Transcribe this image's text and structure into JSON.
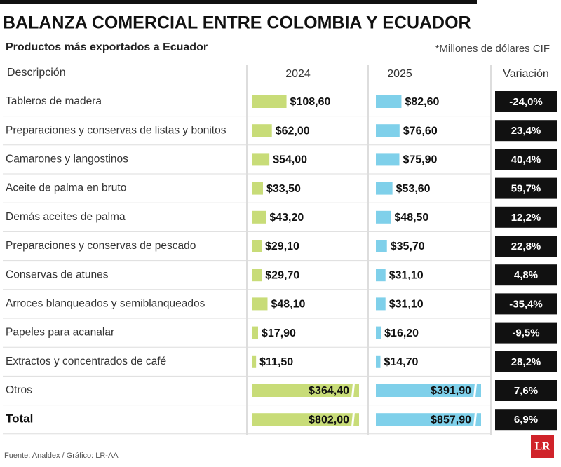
{
  "chart_data": {
    "type": "bar-table",
    "title": "BALANZA COMERCIAL ENTRE COLOMBIA Y ECUADOR",
    "subtitle": "Productos más exportados a Ecuador",
    "unit_note": "*Millones de dólares CIF",
    "description_header": "Descripción",
    "variation_header": "Variación",
    "categories": [
      "Tableros de madera",
      "Preparaciones y conservas de listas y bonitos",
      "Camarones y langostinos",
      "Aceite de palma en bruto",
      "Demás aceites de palma",
      "Preparaciones y conservas de pescado",
      "Conservas de atunes",
      "Arroces blanqueados y semiblanqueados",
      "Papeles para acanalar",
      "Extractos y concentrados de café",
      "Otros",
      "Total"
    ],
    "xlim": [
      0,
      340
    ],
    "series": [
      {
        "name": "2024",
        "color": "#c8dc78",
        "values": [
          108.6,
          62.0,
          54.0,
          33.5,
          43.2,
          29.1,
          29.7,
          48.1,
          17.9,
          11.5,
          364.4,
          802.0
        ],
        "value_labels": [
          "$108,60",
          "$62,00",
          "$54,00",
          "$33,50",
          "$43,20",
          "$29,10",
          "$29,70",
          "$48,10",
          "$17,90",
          "$11,50",
          "$364,40",
          "$802,00"
        ]
      },
      {
        "name": "2025",
        "color": "#7fd0ea",
        "values": [
          82.6,
          76.6,
          75.9,
          53.6,
          48.5,
          35.7,
          31.1,
          31.1,
          16.2,
          14.7,
          391.9,
          857.9
        ],
        "value_labels": [
          "$82,60",
          "$76,60",
          "$75,90",
          "$53,60",
          "$48,50",
          "$35,70",
          "$31,10",
          "$31,10",
          "$16,20",
          "$14,70",
          "$391,90",
          "$857,90"
        ]
      }
    ],
    "variation": {
      "values": [
        -24.0,
        23.4,
        40.4,
        59.7,
        12.2,
        22.8,
        4.8,
        -35.4,
        -9.5,
        28.2,
        7.6,
        6.9
      ],
      "value_labels": [
        "-24,0%",
        "23,4%",
        "40,4%",
        "59,7%",
        "12,2%",
        "22,8%",
        "4,8%",
        "-35,4%",
        "-9,5%",
        "28,2%",
        "7,6%",
        "6,9%"
      ]
    },
    "source": "Fuente: Analdex / Gráfico: LR-AA",
    "logo": "LR"
  }
}
